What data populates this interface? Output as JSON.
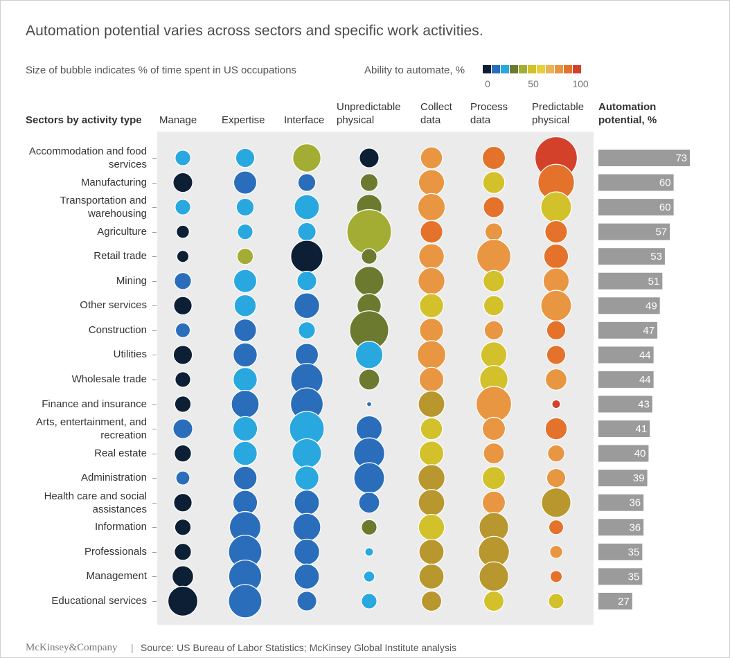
{
  "title": "Automation potential varies across sectors and specific work activities.",
  "subtitle": "Size of bubble indicates % of time spent in US occupations",
  "legend": {
    "title": "Ability to automate, %",
    "colors": [
      "#0d1f35",
      "#2a6ebb",
      "#29a8e0",
      "#6b7a2f",
      "#a3ad34",
      "#d2c12b",
      "#e8cf3a",
      "#ecb257",
      "#e99642",
      "#e4722a",
      "#d3412b"
    ],
    "tick_labels": [
      "0",
      "50",
      "100"
    ]
  },
  "footer": {
    "brand": "McKinsey&Company",
    "separator": "|",
    "source": "Source: US Bureau of Labor Statistics; McKinsey Global Institute analysis"
  },
  "chart_data": {
    "type": "bubble-matrix",
    "row_header": "Sectors by activity type",
    "bar_header": "Automation potential, %",
    "column_labels": [
      "Manage",
      "Expertise",
      "Interface",
      "Unpredictable physical",
      "Collect data",
      "Process data",
      "Predictable physical"
    ],
    "rows": [
      {
        "label": "Accommodation and food services",
        "automation_potential": 73,
        "sizes": [
          1.0,
          1.5,
          3.3,
          1.6,
          2.0,
          2.2,
          7.4
        ],
        "colors": [
          "#29a8e0",
          "#29a8e0",
          "#a3ad34",
          "#0d1f35",
          "#e99642",
          "#e4722a",
          "#d3412b"
        ]
      },
      {
        "label": "Manufacturing",
        "automation_potential": 60,
        "sizes": [
          1.6,
          2.2,
          1.3,
          1.3,
          2.8,
          2.0,
          5.5
        ],
        "colors": [
          "#0d1f35",
          "#2a6ebb",
          "#2a6ebb",
          "#6b7a2f",
          "#e99642",
          "#d2c12b",
          "#e4722a"
        ]
      },
      {
        "label": "Transportation and warehousing",
        "automation_potential": 60,
        "sizes": [
          1.0,
          1.3,
          2.6,
          2.7,
          3.1,
          1.8,
          3.9
        ],
        "colors": [
          "#29a8e0",
          "#29a8e0",
          "#29a8e0",
          "#6b7a2f",
          "#e99642",
          "#e4722a",
          "#d2c12b"
        ]
      },
      {
        "label": "Agriculture",
        "automation_potential": 57,
        "sizes": [
          0.7,
          1.0,
          1.4,
          8.2,
          2.1,
          1.3,
          2.1
        ],
        "colors": [
          "#0d1f35",
          "#29a8e0",
          "#29a8e0",
          "#a3ad34",
          "#e4722a",
          "#e99642",
          "#e4722a"
        ]
      },
      {
        "label": "Retail trade",
        "automation_potential": 53,
        "sizes": [
          0.6,
          1.1,
          4.3,
          1.0,
          2.7,
          4.8,
          2.5
        ],
        "colors": [
          "#0d1f35",
          "#a3ad34",
          "#0d1f35",
          "#6b7a2f",
          "#e99642",
          "#e99642",
          "#e4722a"
        ]
      },
      {
        "label": "Mining",
        "automation_potential": 51,
        "sizes": [
          1.2,
          2.2,
          1.6,
          3.6,
          3.0,
          1.9,
          2.8
        ],
        "colors": [
          "#2a6ebb",
          "#29a8e0",
          "#29a8e0",
          "#6b7a2f",
          "#e99642",
          "#d2c12b",
          "#e99642"
        ]
      },
      {
        "label": "Other services",
        "automation_potential": 49,
        "sizes": [
          1.4,
          2.0,
          2.7,
          2.4,
          2.4,
          1.7,
          3.9
        ],
        "colors": [
          "#0d1f35",
          "#29a8e0",
          "#2a6ebb",
          "#6b7a2f",
          "#d2c12b",
          "#d2c12b",
          "#e99642"
        ]
      },
      {
        "label": "Construction",
        "automation_potential": 47,
        "sizes": [
          0.9,
          2.1,
          1.2,
          6.3,
          2.4,
          1.5,
          1.5
        ],
        "colors": [
          "#2a6ebb",
          "#2a6ebb",
          "#29a8e0",
          "#6b7a2f",
          "#e99642",
          "#e99642",
          "#e4722a"
        ]
      },
      {
        "label": "Utilities",
        "automation_potential": 44,
        "sizes": [
          1.5,
          2.4,
          2.2,
          3.1,
          3.4,
          2.8,
          1.5
        ],
        "colors": [
          "#0d1f35",
          "#2a6ebb",
          "#2a6ebb",
          "#29a8e0",
          "#e99642",
          "#d2c12b",
          "#e4722a"
        ]
      },
      {
        "label": "Wholesale trade",
        "automation_potential": 44,
        "sizes": [
          1.0,
          2.4,
          4.3,
          1.8,
          2.5,
          3.3,
          1.9
        ],
        "colors": [
          "#0d1f35",
          "#29a8e0",
          "#2a6ebb",
          "#6b7a2f",
          "#e99642",
          "#d2c12b",
          "#e99642"
        ]
      },
      {
        "label": "Finance and insurance",
        "automation_potential": 43,
        "sizes": [
          1.1,
          3.2,
          4.4,
          0.1,
          2.9,
          5.2,
          0.3
        ],
        "colors": [
          "#0d1f35",
          "#2a6ebb",
          "#2a6ebb",
          "#2a6ebb",
          "#b8972f",
          "#e99642",
          "#d3412b"
        ]
      },
      {
        "label": "Arts, entertainment, and recreation",
        "automation_potential": 41,
        "sizes": [
          1.6,
          2.5,
          5.0,
          2.8,
          2.0,
          2.2,
          2.0
        ],
        "colors": [
          "#2a6ebb",
          "#29a8e0",
          "#29a8e0",
          "#2a6ebb",
          "#d2c12b",
          "#e99642",
          "#e4722a"
        ]
      },
      {
        "label": "Real estate",
        "automation_potential": 40,
        "sizes": [
          1.2,
          2.4,
          3.6,
          4.0,
          2.5,
          1.8,
          1.2
        ],
        "colors": [
          "#0d1f35",
          "#29a8e0",
          "#29a8e0",
          "#2a6ebb",
          "#d2c12b",
          "#e99642",
          "#e99642"
        ]
      },
      {
        "label": "Administration",
        "automation_potential": 39,
        "sizes": [
          0.8,
          2.3,
          2.4,
          3.9,
          3.0,
          2.2,
          1.5
        ],
        "colors": [
          "#2a6ebb",
          "#2a6ebb",
          "#29a8e0",
          "#2a6ebb",
          "#b8972f",
          "#d2c12b",
          "#e99642"
        ]
      },
      {
        "label": "Health care and social assistances",
        "automation_potential": 36,
        "sizes": [
          1.4,
          2.5,
          2.6,
          1.8,
          2.9,
          2.2,
          3.6
        ],
        "colors": [
          "#0d1f35",
          "#2a6ebb",
          "#2a6ebb",
          "#2a6ebb",
          "#b8972f",
          "#e99642",
          "#b8972f"
        ]
      },
      {
        "label": "Information",
        "automation_potential": 36,
        "sizes": [
          1.1,
          4.1,
          3.2,
          1.0,
          2.8,
          3.6,
          0.9
        ],
        "colors": [
          "#0d1f35",
          "#2a6ebb",
          "#2a6ebb",
          "#6b7a2f",
          "#d2c12b",
          "#b8972f",
          "#e4722a"
        ]
      },
      {
        "label": "Professionals",
        "automation_potential": 35,
        "sizes": [
          1.2,
          4.6,
          2.7,
          0.3,
          2.6,
          4.0,
          0.7
        ],
        "colors": [
          "#0d1f35",
          "#2a6ebb",
          "#2a6ebb",
          "#29a8e0",
          "#b8972f",
          "#b8972f",
          "#e99642"
        ]
      },
      {
        "label": "Management",
        "automation_potential": 35,
        "sizes": [
          1.9,
          4.5,
          2.6,
          0.5,
          2.6,
          3.6,
          0.6
        ],
        "colors": [
          "#0d1f35",
          "#2a6ebb",
          "#2a6ebb",
          "#29a8e0",
          "#b8972f",
          "#b8972f",
          "#e4722a"
        ]
      },
      {
        "label": "Educational services",
        "automation_potential": 27,
        "sizes": [
          3.7,
          4.6,
          1.6,
          1.0,
          1.7,
          1.7,
          1.0
        ],
        "colors": [
          "#0d1f35",
          "#2a6ebb",
          "#2a6ebb",
          "#29a8e0",
          "#b8972f",
          "#d2c12b",
          "#d2c12b"
        ]
      }
    ],
    "bar_range": [
      0,
      100
    ]
  }
}
